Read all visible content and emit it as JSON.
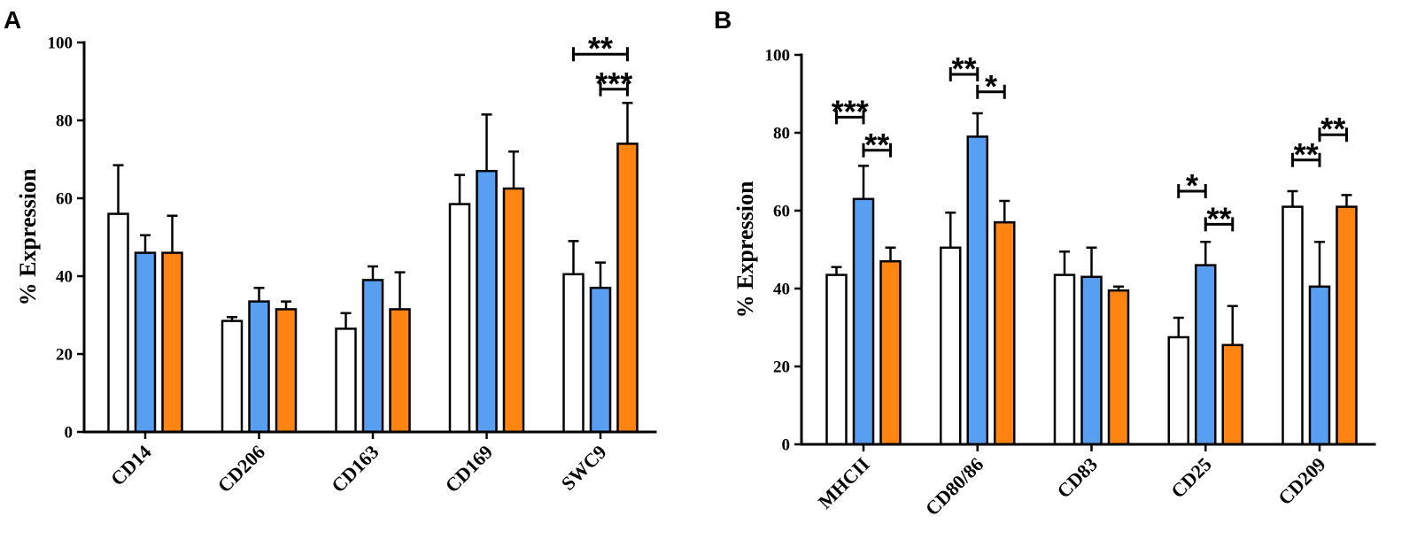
{
  "chart_data": [
    {
      "type": "bar",
      "panel_label": "A",
      "ylabel": "% Expression",
      "ylim": [
        0,
        100
      ],
      "yticks": [
        0,
        20,
        40,
        60,
        80,
        100
      ],
      "grid": false,
      "categories": [
        "CD14",
        "CD206",
        "CD163",
        "CD169",
        "SWC9"
      ],
      "series": [
        {
          "color": "#ffffff",
          "values": [
            56,
            28.5,
            26.5,
            58.5,
            40.5
          ],
          "errors": [
            12.5,
            1,
            4,
            7.5,
            8.5
          ]
        },
        {
          "color": "#589ff2",
          "values": [
            46,
            33.5,
            39,
            67,
            37
          ],
          "errors": [
            4.5,
            3.5,
            3.5,
            14.5,
            6.5
          ]
        },
        {
          "color": "#ff8412",
          "values": [
            46,
            31.5,
            31.5,
            62.5,
            74
          ],
          "errors": [
            9.5,
            2,
            9.5,
            9.5,
            10.5
          ]
        }
      ],
      "significance": [
        {
          "category": 4,
          "from_series": 0,
          "to_series": 2,
          "y": 97,
          "label": "**"
        },
        {
          "category": 4,
          "from_series": 1,
          "to_series": 2,
          "y": 88,
          "label": "***"
        }
      ]
    },
    {
      "type": "bar",
      "panel_label": "B",
      "ylabel": "% Expression",
      "ylim": [
        0,
        100
      ],
      "yticks": [
        0,
        20,
        40,
        60,
        80,
        100
      ],
      "grid": false,
      "categories": [
        "MHCII",
        "CD80/86",
        "CD83",
        "CD25",
        "CD209"
      ],
      "series": [
        {
          "color": "#ffffff",
          "values": [
            43.5,
            50.5,
            43.5,
            27.5,
            61
          ],
          "errors": [
            2,
            9,
            6,
            5,
            4
          ]
        },
        {
          "color": "#589ff2",
          "values": [
            63,
            79,
            43,
            46,
            40.5
          ],
          "errors": [
            8.5,
            6,
            7.5,
            6,
            11.5
          ]
        },
        {
          "color": "#ff8412",
          "values": [
            47,
            57,
            39.5,
            25.5,
            61
          ],
          "errors": [
            3.5,
            5.5,
            1,
            10,
            3
          ]
        }
      ],
      "significance": [
        {
          "category": 0,
          "from_series": 0,
          "to_series": 1,
          "y": 84,
          "label": "***"
        },
        {
          "category": 0,
          "from_series": 1,
          "to_series": 2,
          "y": 75.5,
          "label": "**"
        },
        {
          "category": 1,
          "from_series": 0,
          "to_series": 1,
          "y": 95,
          "label": "**"
        },
        {
          "category": 1,
          "from_series": 1,
          "to_series": 2,
          "y": 90.5,
          "label": "*"
        },
        {
          "category": 3,
          "from_series": 0,
          "to_series": 1,
          "y": 65,
          "label": "*"
        },
        {
          "category": 3,
          "from_series": 1,
          "to_series": 2,
          "y": 56.5,
          "label": "**"
        },
        {
          "category": 4,
          "from_series": 0,
          "to_series": 1,
          "y": 73,
          "label": "**"
        },
        {
          "category": 4,
          "from_series": 1,
          "to_series": 2,
          "y": 79.5,
          "label": "**"
        }
      ]
    }
  ]
}
